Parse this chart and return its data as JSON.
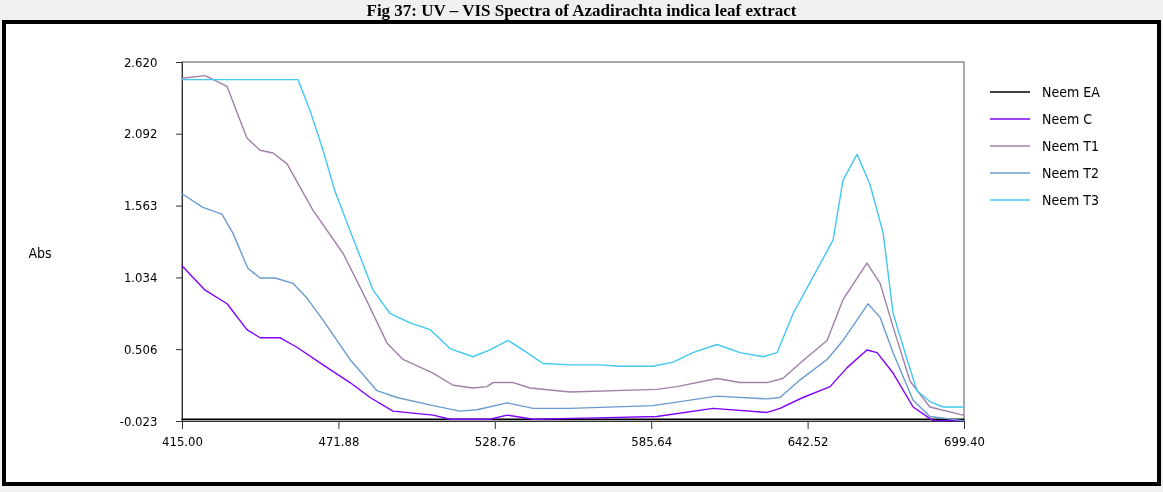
{
  "chart_data": {
    "type": "line",
    "title": "Fig 37: UV – VIS Spectra of Azadirachta indica leaf extract",
    "ylabel": "Abs",
    "xlim": [
      415,
      699.4
    ],
    "ylim": [
      -0.023,
      2.62
    ],
    "xticks": [
      {
        "value": 415,
        "label": "415.00"
      },
      471.88,
      528.76,
      585.64,
      642.52,
      {
        "value": 699.4,
        "label": "699.40"
      }
    ],
    "yticks": [
      -0.023,
      0.506,
      1.034,
      1.563,
      2.092,
      {
        "value": 2.62,
        "label": "2.620"
      }
    ],
    "grid": false,
    "legend": "right",
    "line_style": "solid",
    "marker": "none",
    "series": [
      {
        "name": "Neem EA",
        "color": "#000000",
        "x": [
          415,
          699.4
        ],
        "values": [
          -0.01,
          -0.01
        ]
      },
      {
        "name": "Neem C",
        "color": "#8000ff",
        "x": [
          415,
          423.4,
          431.4,
          438.6,
          443.4,
          450.6,
          456.8,
          466.3,
          476.1,
          483.4,
          491.7,
          506.3,
          512.5,
          527,
          533.2,
          542.7,
          565.9,
          587.7,
          608.1,
          627.8,
          632.5,
          640.8,
          650.7,
          656.9,
          664.1,
          667.8,
          673.6,
          680.9,
          688.1,
          699
        ],
        "values": [
          1.12,
          0.94,
          0.84,
          0.65,
          0.59,
          0.59,
          0.52,
          0.39,
          0.26,
          0.15,
          0.05,
          0.02,
          -0.01,
          -0.01,
          0.02,
          -0.01,
          0,
          0.01,
          0.07,
          0.04,
          0.07,
          0.15,
          0.23,
          0.37,
          0.5,
          0.48,
          0.33,
          0.08,
          -0.02,
          -0.02
        ]
      },
      {
        "name": "Neem T1",
        "color": "#a080a8",
        "x": [
          415,
          423.4,
          431.4,
          438.6,
          443.4,
          448.1,
          453.2,
          462.6,
          473.6,
          480.8,
          489.6,
          495.4,
          506.3,
          513.6,
          520.8,
          525.9,
          528.1,
          535.4,
          541.6,
          556.1,
          587.7,
          595,
          609.6,
          617.9,
          627.8,
          633.5,
          640.8,
          649.6,
          655.4,
          664.1,
          668.9,
          673.6,
          679.8,
          687,
          699
        ],
        "values": [
          2.5,
          2.52,
          2.44,
          2.06,
          1.97,
          1.95,
          1.87,
          1.53,
          1.21,
          0.92,
          0.55,
          0.43,
          0.33,
          0.24,
          0.22,
          0.23,
          0.26,
          0.26,
          0.22,
          0.19,
          0.21,
          0.23,
          0.29,
          0.26,
          0.26,
          0.29,
          0.42,
          0.57,
          0.87,
          1.14,
          0.99,
          0.67,
          0.27,
          0.08,
          0.02
        ]
      },
      {
        "name": "Neem T2",
        "color": "#6a9cd0",
        "x": [
          415,
          422.6,
          429.5,
          433.5,
          439,
          443.4,
          448.8,
          455.4,
          460.5,
          466.3,
          476.1,
          485.9,
          493.2,
          506.3,
          516.1,
          522.3,
          533.2,
          542.7,
          556.1,
          586.3,
          609.6,
          627.8,
          632.5,
          639.8,
          649.6,
          655.4,
          664.5,
          668.9,
          673.6,
          680.9,
          687,
          699
        ],
        "values": [
          1.65,
          1.55,
          1.5,
          1.36,
          1.1,
          1.03,
          1.03,
          0.99,
          0.88,
          0.72,
          0.43,
          0.2,
          0.15,
          0.09,
          0.05,
          0.06,
          0.11,
          0.07,
          0.07,
          0.09,
          0.16,
          0.14,
          0.15,
          0.28,
          0.43,
          0.57,
          0.84,
          0.74,
          0.48,
          0.13,
          0.01,
          -0.02
        ]
      },
      {
        "name": "Neem T3",
        "color": "#40c8f0",
        "x": [
          415,
          457.2,
          461.6,
          466.3,
          470.6,
          476.1,
          484.5,
          490.6,
          497.9,
          505.2,
          512.5,
          520.8,
          527,
          533.6,
          540.5,
          546.3,
          556.1,
          567,
          574.3,
          586.3,
          593.6,
          600.8,
          609.6,
          617.9,
          626.3,
          631.4,
          637.3,
          645.9,
          651.8,
          655.4,
          660.5,
          665.2,
          670,
          673.6,
          678.7,
          682.3,
          687,
          691.8,
          699
        ],
        "values": [
          2.49,
          2.49,
          2.26,
          1.97,
          1.67,
          1.38,
          0.94,
          0.77,
          0.7,
          0.65,
          0.51,
          0.45,
          0.5,
          0.57,
          0.48,
          0.4,
          0.39,
          0.39,
          0.38,
          0.38,
          0.41,
          0.48,
          0.54,
          0.48,
          0.45,
          0.48,
          0.77,
          1.09,
          1.31,
          1.75,
          1.94,
          1.72,
          1.36,
          0.77,
          0.43,
          0.2,
          0.12,
          0.08,
          0.08
        ]
      }
    ]
  }
}
